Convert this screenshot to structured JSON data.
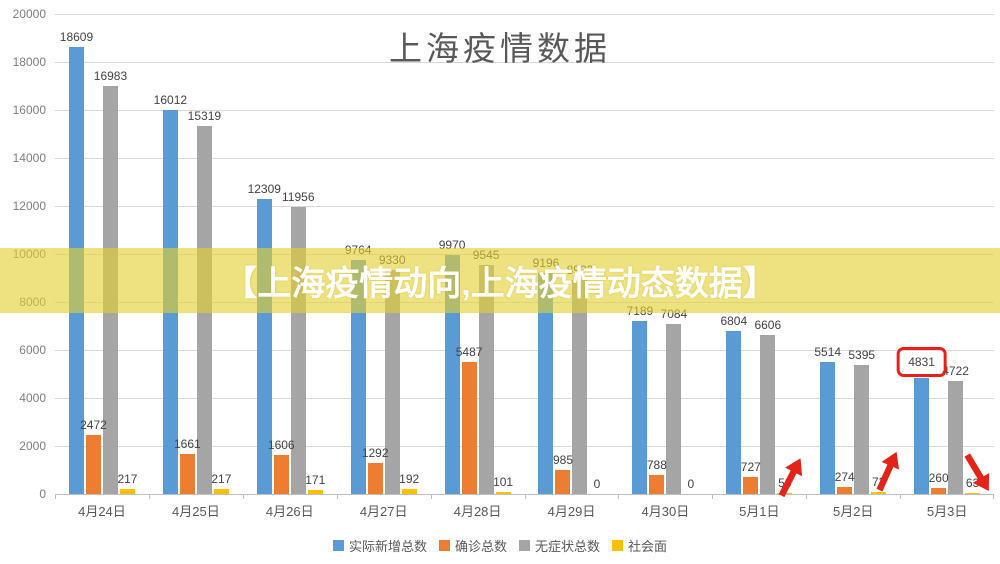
{
  "title": "上海疫情数据",
  "banner": {
    "text": "【上海疫情动向,上海疫情动态数据】"
  },
  "chart_data": {
    "type": "bar",
    "title": "上海疫情数据",
    "categories": [
      "4月24日",
      "4月25日",
      "4月26日",
      "4月27日",
      "4月28日",
      "4月29日",
      "4月30日",
      "5月1日",
      "5月2日",
      "5月3日"
    ],
    "series": [
      {
        "name": "实际新增总数",
        "color": "#5B9BD5",
        "values": [
          18609,
          16012,
          12309,
          9764,
          9970,
          9196,
          7189,
          6804,
          5514,
          4831
        ]
      },
      {
        "name": "确诊总数",
        "color": "#ED7D31",
        "values": [
          2472,
          1661,
          1606,
          1292,
          5487,
          985,
          788,
          727,
          274,
          260
        ]
      },
      {
        "name": "无症状总数",
        "color": "#A5A5A5",
        "values": [
          16983,
          15319,
          11956,
          9330,
          9545,
          8932,
          7084,
          6606,
          5395,
          4722
        ]
      },
      {
        "name": "社会面",
        "color": "#FFC000",
        "values": [
          217,
          217,
          171,
          192,
          101,
          0,
          0,
          58,
          73,
          63
        ]
      }
    ],
    "ylim": [
      0,
      20000
    ],
    "ytick_labels": [
      "20000",
      "18000",
      "16000",
      "14000",
      "12000",
      "10000",
      "8000",
      "6000",
      "4000",
      "2000",
      "0"
    ],
    "grid": true,
    "legend_position": "bottom",
    "highlight": {
      "series_index": 0,
      "category_index": 9,
      "style": "red-box",
      "value": "4831"
    },
    "annotations": [
      {
        "type": "arrow",
        "direction": "up",
        "color": "#e3231a",
        "near_category": "5月1日"
      },
      {
        "type": "arrow",
        "direction": "up",
        "color": "#e3231a",
        "near_category": "5月2日"
      },
      {
        "type": "arrow",
        "direction": "down",
        "color": "#e3231a",
        "near_category": "5月3日"
      }
    ]
  }
}
